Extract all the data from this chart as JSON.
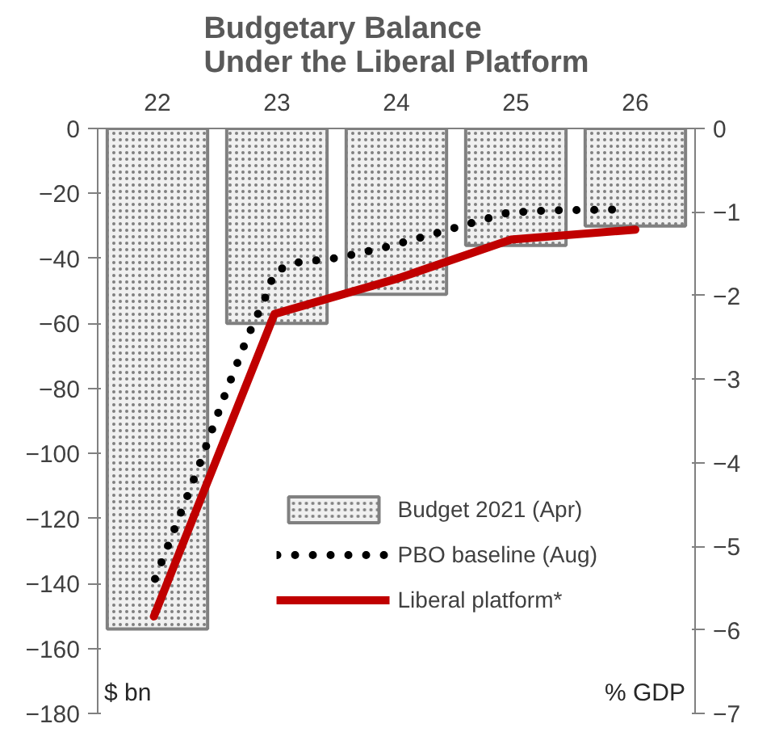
{
  "chart_data": {
    "type": "bar",
    "title": "Budgetary Balance\nUnder the Liberal Platform",
    "x": [
      22,
      23,
      24,
      25,
      26
    ],
    "xlim": [
      21.5,
      26.5
    ],
    "xticks": [
      22,
      23,
      24,
      25,
      26
    ],
    "ylim": [
      -180,
      0
    ],
    "yticks": [
      0,
      -20,
      -40,
      -60,
      -80,
      -100,
      -120,
      -140,
      -160,
      -180
    ],
    "y2lim": [
      -7,
      0
    ],
    "y2ticks": [
      0,
      -1,
      -2,
      -3,
      -4,
      -5,
      -6,
      -7
    ],
    "series": [
      {
        "name": "Budget 2021 (Apr)",
        "color": "#808080",
        "values": [
          -154,
          -60,
          -51,
          -36,
          -30
        ]
      },
      {
        "name": "PBO baseline (Aug)",
        "type": "line",
        "axis": "y2",
        "line_style": "dotted",
        "color": "#000000",
        "x": [
          21.98,
          22.18,
          22.34,
          22.54,
          22.75,
          22.91,
          22.98,
          23.14,
          23.5,
          23.86,
          24.22,
          24.56,
          24.93,
          25.29,
          25.85
        ],
        "values": [
          -5.39,
          -4.66,
          -4.07,
          -3.28,
          -2.51,
          -2.0,
          -1.72,
          -1.61,
          -1.55,
          -1.44,
          -1.3,
          -1.16,
          -1.01,
          -0.98,
          -0.97
        ]
      },
      {
        "name": "Liberal platform*",
        "type": "line",
        "axis": "y2",
        "line_style": "solid",
        "color": "#c00000",
        "x": [
          21.97,
          22.98,
          24.0,
          24.96,
          26.0
        ],
        "values": [
          -5.84,
          -2.22,
          -1.8,
          -1.33,
          -1.21
        ]
      }
    ],
    "annotations": [
      "$ bn",
      "% GDP"
    ],
    "grid": false,
    "legend": "bottom right"
  }
}
